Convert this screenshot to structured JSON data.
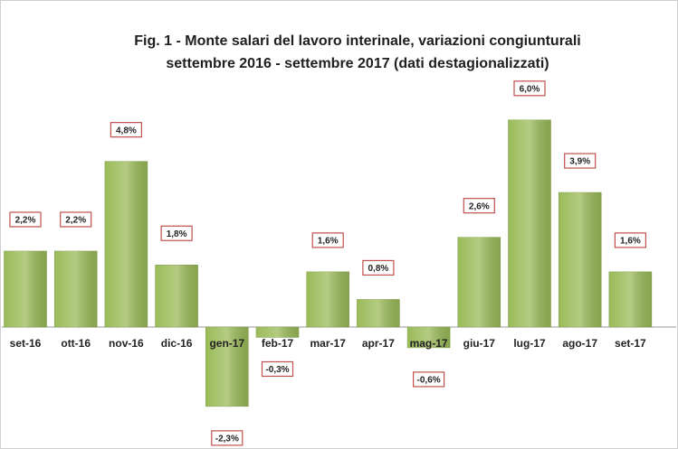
{
  "chart_data": {
    "type": "bar",
    "title": "Fig. 1 - Monte  salari del lavoro interinale, variazioni congiunturali",
    "subtitle": "settembre 2016 - settembre 2017 (dati destagionalizzati)",
    "categories": [
      "set-16",
      "ott-16",
      "nov-16",
      "dic-16",
      "gen-17",
      "feb-17",
      "mar-17",
      "apr-17",
      "mag-17",
      "giu-17",
      "lug-17",
      "ago-17",
      "set-17"
    ],
    "values": [
      2.2,
      2.2,
      4.8,
      1.8,
      -2.3,
      -0.3,
      1.6,
      0.8,
      -0.6,
      2.6,
      6.0,
      3.9,
      1.6
    ],
    "value_labels": [
      "2,2%",
      "2,2%",
      "4,8%",
      "1,8%",
      "-2,3%",
      "-0,3%",
      "1,6%",
      "0,8%",
      "-0,6%",
      "2,6%",
      "6,0%",
      "3,9%",
      "1,6%"
    ],
    "color": "#9bbb59"
  }
}
